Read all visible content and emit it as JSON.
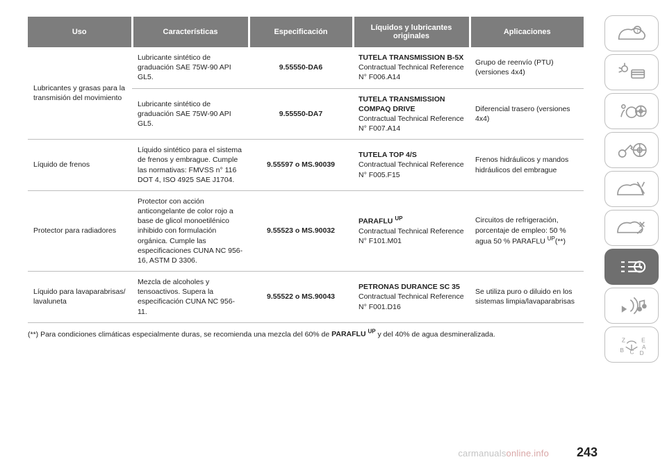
{
  "table": {
    "header_bg": "#7d7d7d",
    "header_gap": "#ffffff",
    "border_color": "#bdbdbd",
    "columns": [
      "Uso",
      "Características",
      "Especificación",
      "Líquidos y lubricantes originales",
      "Aplicaciones"
    ],
    "rows": [
      {
        "uso": "Lubricantes y grasas para la transmisión del movimiento",
        "uso_rowspan": 2,
        "carac": "Lubricante sintético de graduación SAE 75W-90 API GL5.",
        "espec": "9.55550-DA6",
        "liq_bold": "TUTELA TRANSMISSION B-5X",
        "liq_rest": "Contractual Technical Reference N° F006.A14",
        "app": "Grupo de reenvío (PTU) (versiones 4x4)"
      },
      {
        "carac": "Lubricante sintético de graduación SAE 75W-90 API GL5.",
        "espec": "9.55550-DA7",
        "liq_bold": "TUTELA TRANSMISSION COMPAQ DRIVE",
        "liq_rest": "Contractual Technical Reference N° F007.A14",
        "app": "Diferencial trasero (versiones 4x4)"
      },
      {
        "uso": "Líquido de frenos",
        "carac": "Líquido sintético para el sistema de frenos y embrague. Cumple las normativas: FMVSS n° 116 DOT 4, ISO 4925 SAE J1704.",
        "espec": "9.55597 o MS.90039",
        "liq_bold": "TUTELA TOP 4/S",
        "liq_rest": "Contractual Technical Reference N° F005.F15",
        "app": "Frenos hidráulicos y mandos hidráulicos del embrague"
      },
      {
        "uso": "Protector para radiadores",
        "carac": "Protector con acción anticongelante de color rojo a base de glicol monoetilénico inhibido con formulación orgánica. Cumple las especificaciones CUNA NC 956-16, ASTM D 3306.",
        "espec": "9.55523 o MS.90032",
        "liq_bold_html": "PARAFLU <span class='sup'>UP</span>",
        "liq_rest": "Contractual Technical Reference N° F101.M01",
        "app_html": "Circuitos de refrigeración, porcentaje de empleo: 50 % agua 50 % PARAFLU <span class='sup'>UP</span>(**)"
      },
      {
        "uso": "Líquido para lavaparabrisas/ lavaluneta",
        "carac": "Mezcla de alcoholes y tensoactivos. Supera la especificación CUNA NC 956-11.",
        "espec": "9.55522 o MS.90043",
        "liq_bold": "PETRONAS DURANCE SC 35",
        "liq_rest": "Contractual Technical Reference N° F001.D16",
        "app": "Se utiliza puro o diluido en los sistemas limpia/lavaparabrisas"
      }
    ]
  },
  "footnote_pre": "(**) Para condiciones climáticas especialmente duras, se recomienda una mezcla del 60% de ",
  "footnote_bold": "PARAFLU",
  "footnote_sup": "UP",
  "footnote_post": " y del 40% de agua desmineralizada.",
  "page_number": "243",
  "watermark_a": "carmanuals",
  "watermark_b": "online.info",
  "watermark_a_color": "#c4c4c4",
  "watermark_b_color": "#d9a7a7",
  "sidebar_icon_color": "#9a9a9a"
}
